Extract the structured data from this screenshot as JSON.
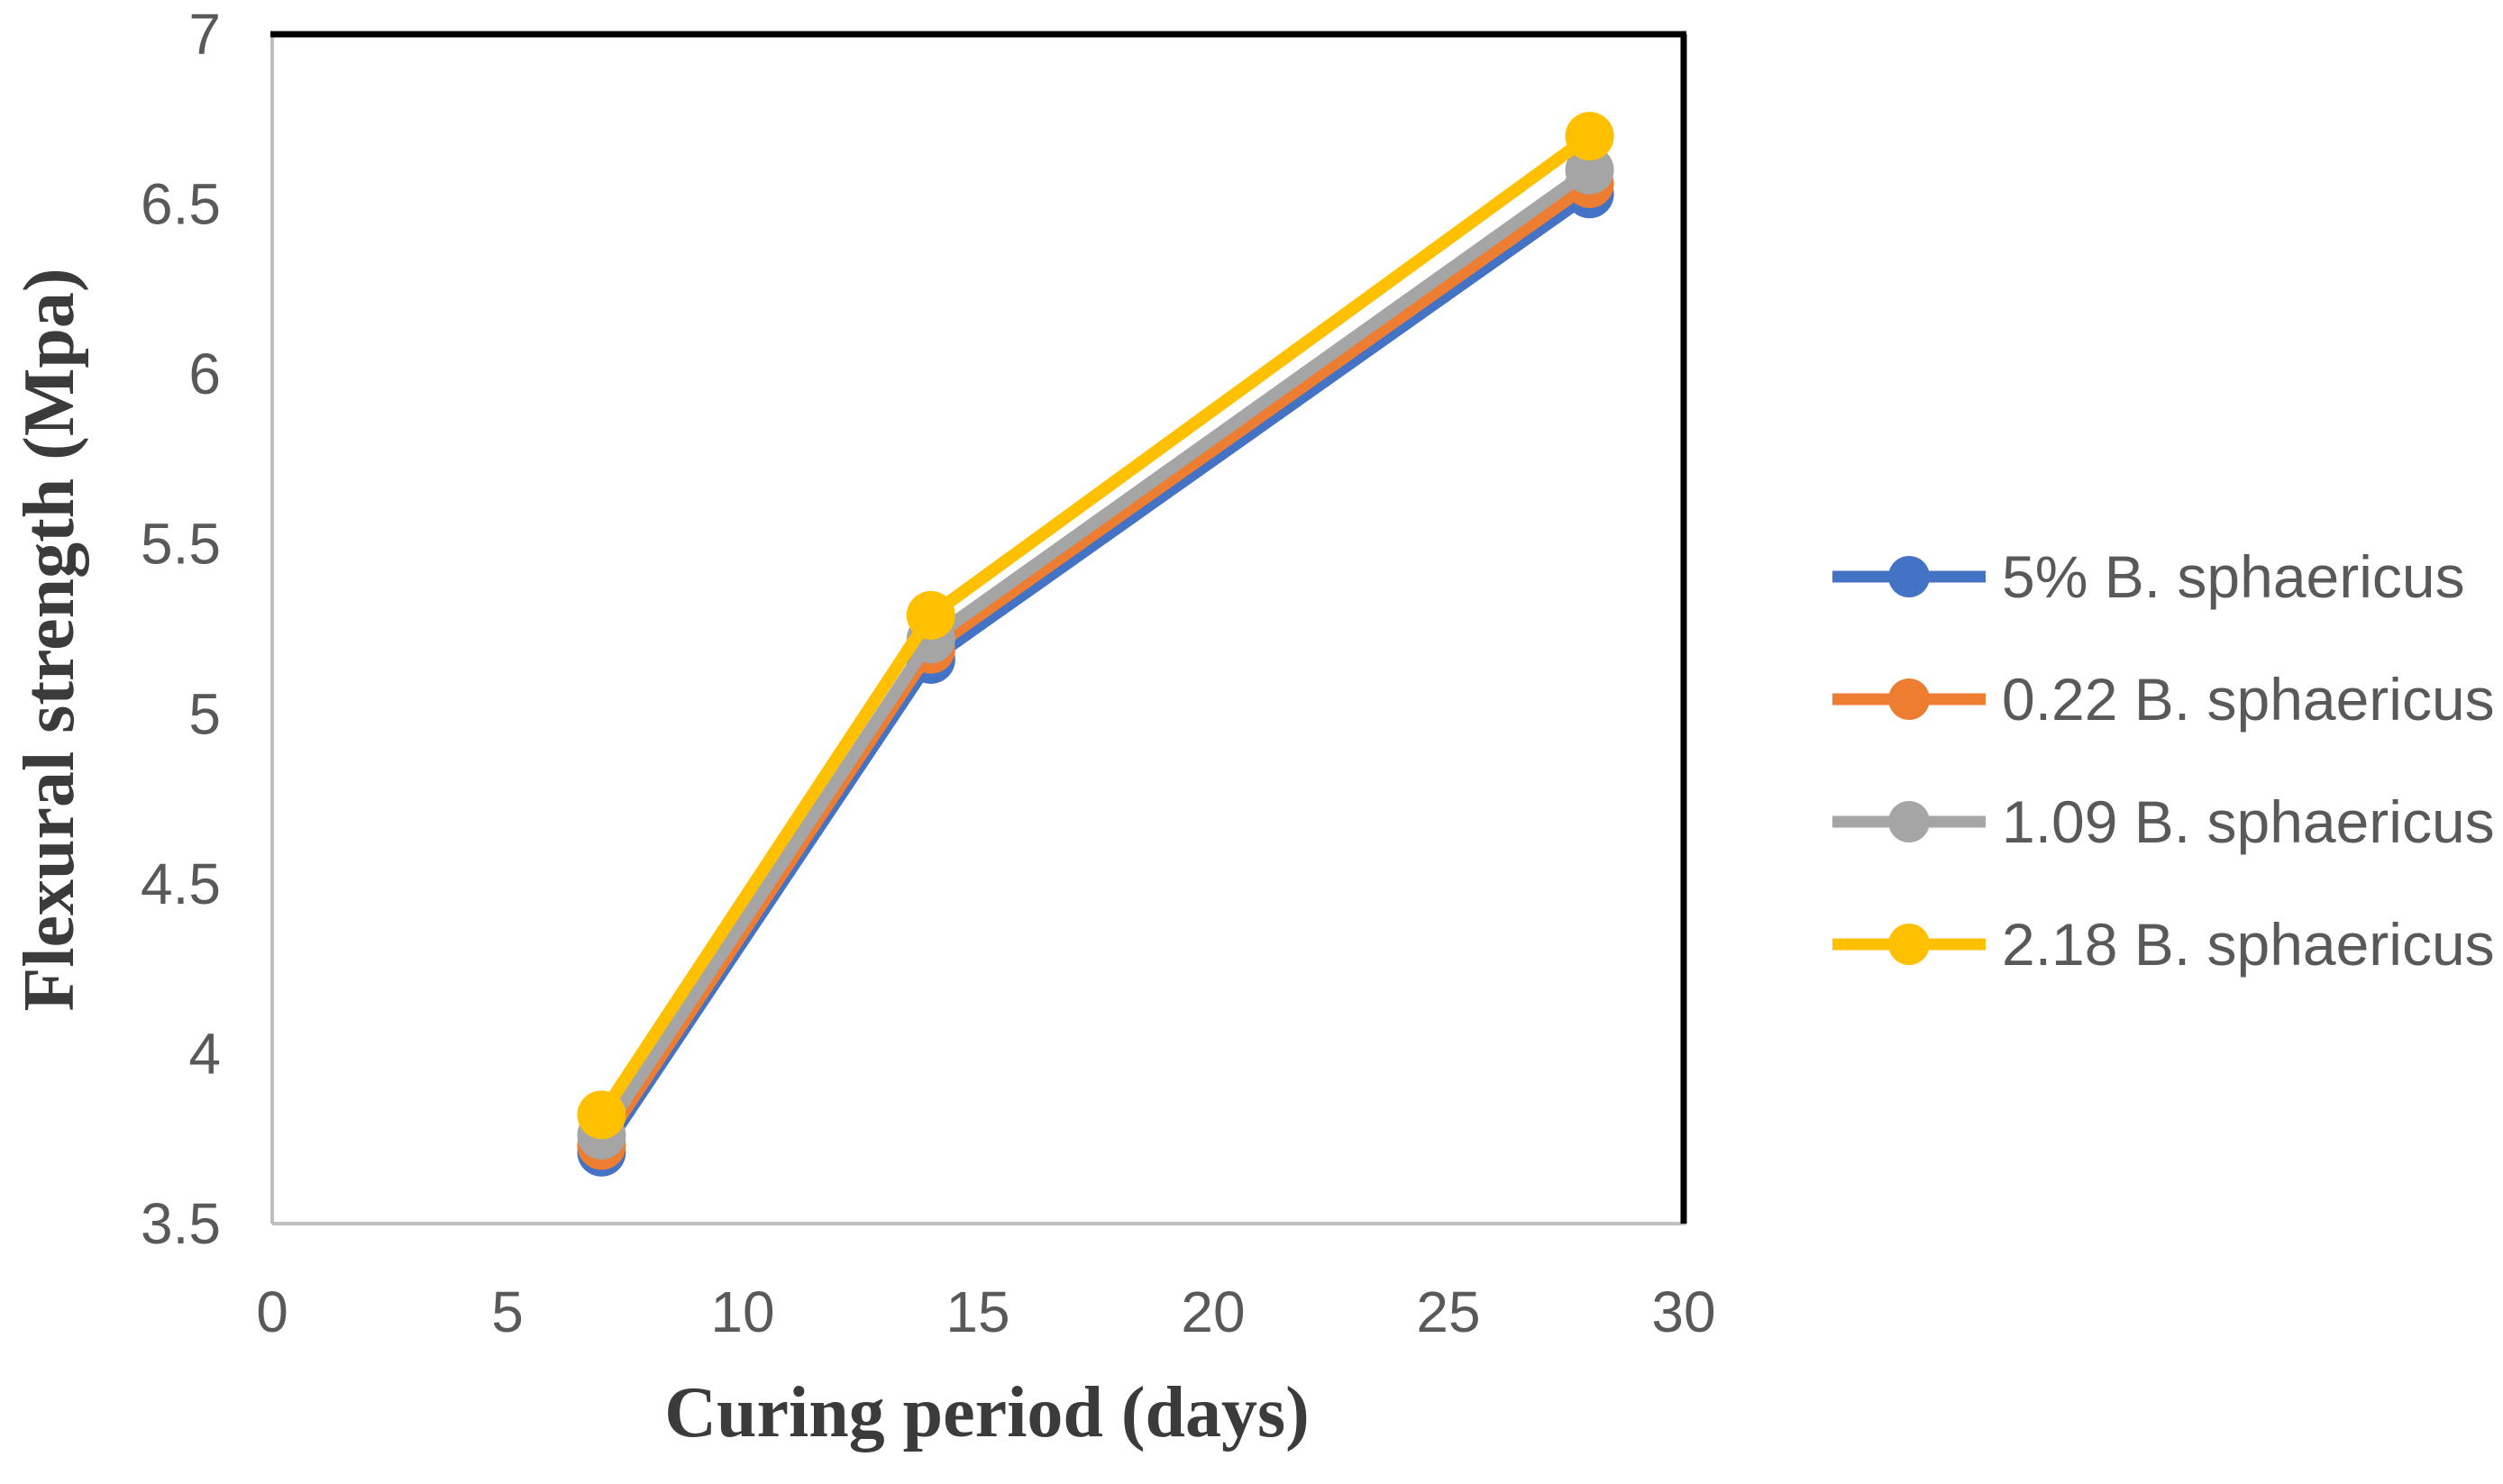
{
  "figure": {
    "background": "#ffffff"
  },
  "chart_data": {
    "type": "line",
    "title": "",
    "xlabel": "Curing period (days)",
    "ylabel": "Flexural strength (Mpa)",
    "x": [
      7,
      14,
      28
    ],
    "series": [
      {
        "name": "5% B. sphaericus",
        "color": "#4472C4",
        "values": [
          3.71,
          5.16,
          6.53
        ]
      },
      {
        "name": "0.22 B. sphaericus",
        "color": "#ED7D31",
        "values": [
          3.73,
          5.19,
          6.56
        ]
      },
      {
        "name": "1.09 B. sphaericus",
        "color": "#A5A5A5",
        "values": [
          3.76,
          5.22,
          6.6
        ]
      },
      {
        "name": "2.18 B. sphaericus",
        "color": "#FFC000",
        "values": [
          3.82,
          5.29,
          6.7
        ]
      }
    ],
    "xlim": [
      0,
      30
    ],
    "ylim": [
      3.5,
      7
    ],
    "x_tick_labels": [
      "0",
      "5",
      "10",
      "15",
      "20",
      "25",
      "30"
    ],
    "x_tick_values": [
      0,
      5,
      10,
      15,
      20,
      25,
      30
    ],
    "y_tick_labels": [
      "3.5",
      "4",
      "4.5",
      "5",
      "5.5",
      "6",
      "6.5",
      "7"
    ],
    "y_tick_values": [
      3.5,
      4,
      4.5,
      5,
      5.5,
      6,
      6.5,
      7
    ],
    "grid": false,
    "marker": "circle",
    "legend_position": "right"
  },
  "colors": {
    "border_black": "#000000",
    "axis_line_gray": "#BFBFBF",
    "tick_label": "#595959",
    "axis_title": "#3b3b3b",
    "legend_text": "#595959"
  }
}
